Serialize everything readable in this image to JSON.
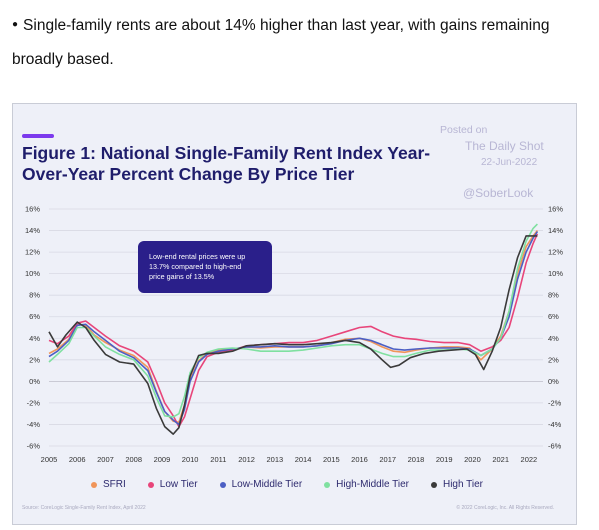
{
  "intro": {
    "bullet": "●",
    "text": "Single-family rents are about 14% higher than last year, with gains remaining broadly based."
  },
  "credits": {
    "posted": "Posted on",
    "source": "The Daily Shot",
    "date": "22-Jun-2022",
    "handle": "@SoberLook"
  },
  "footer": {
    "source": "Source: CoreLogic Single-Family Rent Index, April 2022",
    "copyright": "© 2022 CoreLogic, Inc. All Rights Reserved."
  },
  "colors": {
    "accent": "#7c3aed",
    "title": "#1f1d6b",
    "annotation_bg": "#2a1f8a"
  },
  "chart_data": {
    "type": "line",
    "title": "Figure 1: National Single-Family Rent Index Year-Over-Year Percent Change By Price Tier",
    "xlabel": "",
    "ylabel": "",
    "x_ticks": [
      "2005",
      "2006",
      "2007",
      "2008",
      "2009",
      "2010",
      "2011",
      "2012",
      "2013",
      "2014",
      "2015",
      "2016",
      "2017",
      "2018",
      "2019",
      "2020",
      "2021",
      "2022"
    ],
    "y_ticks": [
      "16%",
      "14%",
      "12%",
      "10%",
      "8%",
      "6%",
      "4%",
      "2%",
      "0%",
      "-2%",
      "-4%",
      "-6%"
    ],
    "xlim": [
      2005,
      2022.5
    ],
    "ylim": [
      -6,
      16
    ],
    "grid": "horizontal",
    "legend_position": "bottom",
    "annotation": "Low-end rental prices were up 13.7% compared to high-end price gains of 13.5%",
    "series": [
      {
        "name": "SFRI",
        "color": "#f0955a",
        "points": [
          [
            2005,
            2.6
          ],
          [
            2005.3,
            3.0
          ],
          [
            2005.7,
            3.9
          ],
          [
            2006,
            5.3
          ],
          [
            2006.3,
            5.2
          ],
          [
            2006.6,
            4.3
          ],
          [
            2007,
            3.6
          ],
          [
            2007.5,
            2.9
          ],
          [
            2008,
            2.4
          ],
          [
            2008.5,
            1.3
          ],
          [
            2008.8,
            -0.9
          ],
          [
            2009.1,
            -2.8
          ],
          [
            2009.4,
            -3.7
          ],
          [
            2009.6,
            -3.8
          ],
          [
            2009.8,
            -2.2
          ],
          [
            2010,
            0.2
          ],
          [
            2010.3,
            1.9
          ],
          [
            2010.6,
            2.6
          ],
          [
            2011,
            2.9
          ],
          [
            2011.5,
            3.0
          ],
          [
            2012,
            3.2
          ],
          [
            2012.5,
            3.1
          ],
          [
            2013,
            3.2
          ],
          [
            2013.5,
            3.2
          ],
          [
            2014,
            3.2
          ],
          [
            2014.5,
            3.3
          ],
          [
            2015,
            3.6
          ],
          [
            2015.5,
            3.9
          ],
          [
            2016,
            4.0
          ],
          [
            2016.4,
            3.7
          ],
          [
            2016.8,
            3.2
          ],
          [
            2017.2,
            2.8
          ],
          [
            2017.6,
            2.7
          ],
          [
            2018,
            2.9
          ],
          [
            2018.5,
            3.1
          ],
          [
            2019,
            3.2
          ],
          [
            2019.5,
            3.2
          ],
          [
            2019.9,
            3.1
          ],
          [
            2020.3,
            2.0
          ],
          [
            2020.7,
            3.0
          ],
          [
            2021,
            4.2
          ],
          [
            2021.3,
            6.5
          ],
          [
            2021.6,
            10.0
          ],
          [
            2021.9,
            12.5
          ],
          [
            2022.15,
            13.5
          ],
          [
            2022.3,
            14.0
          ]
        ]
      },
      {
        "name": "Low Tier",
        "color": "#e8457a",
        "points": [
          [
            2005,
            3.8
          ],
          [
            2005.3,
            3.5
          ],
          [
            2005.7,
            4.2
          ],
          [
            2006,
            5.4
          ],
          [
            2006.3,
            5.6
          ],
          [
            2006.6,
            5.0
          ],
          [
            2007,
            4.2
          ],
          [
            2007.5,
            3.3
          ],
          [
            2008,
            2.8
          ],
          [
            2008.5,
            1.8
          ],
          [
            2008.8,
            0.0
          ],
          [
            2009.1,
            -2.0
          ],
          [
            2009.4,
            -3.2
          ],
          [
            2009.6,
            -4.2
          ],
          [
            2009.8,
            -3.3
          ],
          [
            2010,
            -1.6
          ],
          [
            2010.3,
            1.0
          ],
          [
            2010.6,
            2.3
          ],
          [
            2011,
            2.7
          ],
          [
            2011.5,
            2.9
          ],
          [
            2012,
            3.3
          ],
          [
            2012.5,
            3.4
          ],
          [
            2013,
            3.5
          ],
          [
            2013.5,
            3.6
          ],
          [
            2014,
            3.6
          ],
          [
            2014.5,
            3.8
          ],
          [
            2015,
            4.2
          ],
          [
            2015.5,
            4.6
          ],
          [
            2016,
            5.0
          ],
          [
            2016.4,
            5.1
          ],
          [
            2016.8,
            4.6
          ],
          [
            2017.2,
            4.2
          ],
          [
            2017.6,
            4.0
          ],
          [
            2018,
            3.9
          ],
          [
            2018.5,
            3.7
          ],
          [
            2019,
            3.6
          ],
          [
            2019.5,
            3.6
          ],
          [
            2019.9,
            3.4
          ],
          [
            2020.3,
            2.8
          ],
          [
            2020.7,
            3.2
          ],
          [
            2021,
            3.8
          ],
          [
            2021.3,
            5.0
          ],
          [
            2021.6,
            7.8
          ],
          [
            2021.9,
            11.0
          ],
          [
            2022.15,
            12.8
          ],
          [
            2022.3,
            13.7
          ]
        ]
      },
      {
        "name": "Low-Middle Tier",
        "color": "#4c5fc4",
        "points": [
          [
            2005,
            2.3
          ],
          [
            2005.3,
            2.8
          ],
          [
            2005.7,
            3.8
          ],
          [
            2006,
            5.2
          ],
          [
            2006.3,
            5.3
          ],
          [
            2006.6,
            4.6
          ],
          [
            2007,
            3.8
          ],
          [
            2007.5,
            2.8
          ],
          [
            2008,
            2.2
          ],
          [
            2008.5,
            1.0
          ],
          [
            2008.8,
            -1.0
          ],
          [
            2009.1,
            -2.8
          ],
          [
            2009.4,
            -3.6
          ],
          [
            2009.6,
            -4.0
          ],
          [
            2009.8,
            -2.6
          ],
          [
            2010,
            0.0
          ],
          [
            2010.3,
            1.8
          ],
          [
            2010.6,
            2.5
          ],
          [
            2011,
            2.8
          ],
          [
            2011.5,
            3.0
          ],
          [
            2012,
            3.2
          ],
          [
            2012.5,
            3.2
          ],
          [
            2013,
            3.3
          ],
          [
            2013.5,
            3.2
          ],
          [
            2014,
            3.2
          ],
          [
            2014.5,
            3.3
          ],
          [
            2015,
            3.5
          ],
          [
            2015.5,
            3.8
          ],
          [
            2016,
            4.0
          ],
          [
            2016.4,
            3.8
          ],
          [
            2016.8,
            3.4
          ],
          [
            2017.2,
            3.0
          ],
          [
            2017.6,
            2.9
          ],
          [
            2018,
            3.0
          ],
          [
            2018.5,
            3.1
          ],
          [
            2019,
            3.1
          ],
          [
            2019.5,
            3.1
          ],
          [
            2019.9,
            3.0
          ],
          [
            2020.3,
            2.4
          ],
          [
            2020.7,
            3.0
          ],
          [
            2021,
            4.0
          ],
          [
            2021.3,
            6.0
          ],
          [
            2021.6,
            9.5
          ],
          [
            2021.9,
            12.0
          ],
          [
            2022.15,
            13.3
          ],
          [
            2022.3,
            13.9
          ]
        ]
      },
      {
        "name": "High-Middle Tier",
        "color": "#7fe0a0",
        "points": [
          [
            2005,
            1.8
          ],
          [
            2005.3,
            2.5
          ],
          [
            2005.7,
            3.5
          ],
          [
            2006,
            5.0
          ],
          [
            2006.3,
            5.0
          ],
          [
            2006.6,
            4.2
          ],
          [
            2007,
            3.2
          ],
          [
            2007.5,
            2.5
          ],
          [
            2008,
            2.0
          ],
          [
            2008.5,
            0.5
          ],
          [
            2008.8,
            -1.5
          ],
          [
            2009.1,
            -3.2
          ],
          [
            2009.4,
            -3.3
          ],
          [
            2009.6,
            -3.0
          ],
          [
            2009.8,
            -1.4
          ],
          [
            2010,
            0.8
          ],
          [
            2010.3,
            2.2
          ],
          [
            2010.6,
            2.7
          ],
          [
            2011,
            3.0
          ],
          [
            2011.5,
            3.1
          ],
          [
            2012,
            3.0
          ],
          [
            2012.5,
            2.8
          ],
          [
            2013,
            2.8
          ],
          [
            2013.5,
            2.8
          ],
          [
            2014,
            2.9
          ],
          [
            2014.5,
            3.1
          ],
          [
            2015,
            3.3
          ],
          [
            2015.5,
            3.4
          ],
          [
            2016,
            3.4
          ],
          [
            2016.4,
            3.0
          ],
          [
            2016.8,
            2.6
          ],
          [
            2017.2,
            2.3
          ],
          [
            2017.6,
            2.3
          ],
          [
            2018,
            2.6
          ],
          [
            2018.5,
            2.9
          ],
          [
            2019,
            2.9
          ],
          [
            2019.5,
            3.0
          ],
          [
            2019.9,
            2.9
          ],
          [
            2020.3,
            2.4
          ],
          [
            2020.7,
            3.0
          ],
          [
            2021,
            4.0
          ],
          [
            2021.3,
            6.5
          ],
          [
            2021.6,
            10.5
          ],
          [
            2021.9,
            13.0
          ],
          [
            2022.15,
            14.2
          ],
          [
            2022.3,
            14.6
          ]
        ]
      },
      {
        "name": "High Tier",
        "color": "#3a3a3a",
        "points": [
          [
            2005,
            4.6
          ],
          [
            2005.3,
            3.2
          ],
          [
            2005.6,
            4.3
          ],
          [
            2006,
            5.5
          ],
          [
            2006.3,
            5.0
          ],
          [
            2006.6,
            3.8
          ],
          [
            2007,
            2.5
          ],
          [
            2007.5,
            1.8
          ],
          [
            2008,
            1.6
          ],
          [
            2008.5,
            -0.2
          ],
          [
            2008.8,
            -2.5
          ],
          [
            2009.1,
            -4.2
          ],
          [
            2009.4,
            -4.9
          ],
          [
            2009.6,
            -4.3
          ],
          [
            2009.8,
            -2.2
          ],
          [
            2010,
            0.5
          ],
          [
            2010.3,
            2.4
          ],
          [
            2010.6,
            2.6
          ],
          [
            2011,
            2.6
          ],
          [
            2011.5,
            2.8
          ],
          [
            2012,
            3.3
          ],
          [
            2012.5,
            3.4
          ],
          [
            2013,
            3.5
          ],
          [
            2013.5,
            3.4
          ],
          [
            2014,
            3.4
          ],
          [
            2014.5,
            3.5
          ],
          [
            2015,
            3.6
          ],
          [
            2015.5,
            3.8
          ],
          [
            2016,
            3.6
          ],
          [
            2016.4,
            3.0
          ],
          [
            2016.8,
            2.0
          ],
          [
            2017.1,
            1.3
          ],
          [
            2017.4,
            1.5
          ],
          [
            2017.8,
            2.2
          ],
          [
            2018.3,
            2.6
          ],
          [
            2018.8,
            2.8
          ],
          [
            2019.3,
            2.9
          ],
          [
            2019.8,
            3.0
          ],
          [
            2020.1,
            2.5
          ],
          [
            2020.4,
            1.1
          ],
          [
            2020.7,
            2.8
          ],
          [
            2021,
            5.0
          ],
          [
            2021.3,
            8.5
          ],
          [
            2021.6,
            11.5
          ],
          [
            2021.9,
            13.5
          ],
          [
            2022.15,
            13.5
          ],
          [
            2022.3,
            13.5
          ]
        ]
      }
    ]
  }
}
